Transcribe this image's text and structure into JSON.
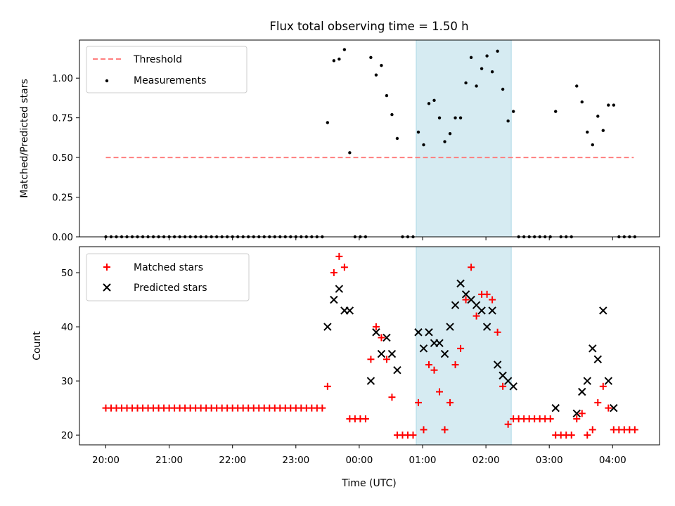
{
  "chart_data": [
    {
      "type": "scatter",
      "title": "Flux total observing time = 1.50 h",
      "xlabel": "",
      "ylabel": "Matched/Predicted stars",
      "ylim": [
        0,
        1.24
      ],
      "yticks": [
        "0.00",
        "0.25",
        "0.50",
        "0.75",
        "1.00"
      ],
      "shaded_interval": [
        "00:54",
        "02:24"
      ],
      "legend": {
        "placement": "top-left",
        "entries": [
          "Threshold",
          "Measurements"
        ]
      },
      "threshold": {
        "name": "Threshold",
        "value": 0.5,
        "x_start": "20:00",
        "x_end": "04:20",
        "color": "#ff7f7f"
      },
      "series": [
        {
          "name": "Measurements",
          "color": "#000000",
          "points": [
            [
              "20:00",
              0
            ],
            [
              "20:05",
              0
            ],
            [
              "20:10",
              0
            ],
            [
              "20:15",
              0
            ],
            [
              "20:20",
              0
            ],
            [
              "20:25",
              0
            ],
            [
              "20:30",
              0
            ],
            [
              "20:35",
              0
            ],
            [
              "20:40",
              0
            ],
            [
              "20:45",
              0
            ],
            [
              "20:50",
              0
            ],
            [
              "20:55",
              0
            ],
            [
              "21:00",
              0
            ],
            [
              "21:05",
              0
            ],
            [
              "21:10",
              0
            ],
            [
              "21:15",
              0
            ],
            [
              "21:20",
              0
            ],
            [
              "21:25",
              0
            ],
            [
              "21:30",
              0
            ],
            [
              "21:35",
              0
            ],
            [
              "21:40",
              0
            ],
            [
              "21:45",
              0
            ],
            [
              "21:50",
              0
            ],
            [
              "21:55",
              0
            ],
            [
              "22:00",
              0
            ],
            [
              "22:05",
              0
            ],
            [
              "22:10",
              0
            ],
            [
              "22:15",
              0
            ],
            [
              "22:20",
              0
            ],
            [
              "22:25",
              0
            ],
            [
              "22:30",
              0
            ],
            [
              "22:35",
              0
            ],
            [
              "22:40",
              0
            ],
            [
              "22:45",
              0
            ],
            [
              "22:50",
              0
            ],
            [
              "22:55",
              0
            ],
            [
              "23:00",
              0
            ],
            [
              "23:05",
              0
            ],
            [
              "23:10",
              0
            ],
            [
              "23:15",
              0
            ],
            [
              "23:20",
              0
            ],
            [
              "23:25",
              0
            ],
            [
              "23:30",
              0.72
            ],
            [
              "23:36",
              1.11
            ],
            [
              "23:41",
              1.12
            ],
            [
              "23:46",
              1.18
            ],
            [
              "23:51",
              0.53
            ],
            [
              "23:56",
              0
            ],
            [
              "00:01",
              0
            ],
            [
              "00:06",
              0
            ],
            [
              "00:11",
              1.13
            ],
            [
              "00:16",
              1.02
            ],
            [
              "00:21",
              1.08
            ],
            [
              "00:26",
              0.89
            ],
            [
              "00:31",
              0.77
            ],
            [
              "00:36",
              0.62
            ],
            [
              "00:41",
              0
            ],
            [
              "00:46",
              0
            ],
            [
              "00:51",
              0
            ],
            [
              "00:56",
              0.66
            ],
            [
              "01:01",
              0.58
            ],
            [
              "01:06",
              0.84
            ],
            [
              "01:11",
              0.86
            ],
            [
              "01:16",
              0.75
            ],
            [
              "01:21",
              0.6
            ],
            [
              "01:26",
              0.65
            ],
            [
              "01:31",
              0.75
            ],
            [
              "01:36",
              0.75
            ],
            [
              "01:41",
              0.97
            ],
            [
              "01:46",
              1.13
            ],
            [
              "01:51",
              0.95
            ],
            [
              "01:56",
              1.06
            ],
            [
              "02:01",
              1.14
            ],
            [
              "02:06",
              1.04
            ],
            [
              "02:11",
              1.17
            ],
            [
              "02:16",
              0.93
            ],
            [
              "02:21",
              0.73
            ],
            [
              "02:26",
              0.79
            ],
            [
              "02:31",
              0
            ],
            [
              "02:36",
              0
            ],
            [
              "02:41",
              0
            ],
            [
              "02:46",
              0
            ],
            [
              "02:51",
              0
            ],
            [
              "02:56",
              0
            ],
            [
              "03:01",
              0
            ],
            [
              "03:06",
              0.79
            ],
            [
              "03:11",
              0
            ],
            [
              "03:16",
              0
            ],
            [
              "03:21",
              0
            ],
            [
              "03:26",
              0.95
            ],
            [
              "03:31",
              0.85
            ],
            [
              "03:36",
              0.66
            ],
            [
              "03:41",
              0.58
            ],
            [
              "03:46",
              0.76
            ],
            [
              "03:51",
              0.67
            ],
            [
              "03:56",
              0.83
            ],
            [
              "04:01",
              0.83
            ],
            [
              "04:06",
              0
            ],
            [
              "04:11",
              0
            ],
            [
              "04:16",
              0
            ],
            [
              "04:21",
              0
            ]
          ]
        }
      ]
    },
    {
      "type": "scatter",
      "title": "",
      "xlabel": "Time (UTC)",
      "ylabel": "Count",
      "ylim": [
        18.2,
        54.8
      ],
      "yticks": [
        "20",
        "30",
        "40",
        "50"
      ],
      "xticks": [
        "20:00",
        "21:00",
        "22:00",
        "23:00",
        "00:00",
        "01:00",
        "02:00",
        "03:00",
        "04:00"
      ],
      "shaded_interval": [
        "00:54",
        "02:24"
      ],
      "legend": {
        "placement": "top-left",
        "entries": [
          "Matched stars",
          "Predicted stars"
        ]
      },
      "series": [
        {
          "name": "Matched stars",
          "marker": "plus",
          "color": "#ff0000",
          "points": [
            [
              "20:00",
              25
            ],
            [
              "20:05",
              25
            ],
            [
              "20:10",
              25
            ],
            [
              "20:15",
              25
            ],
            [
              "20:20",
              25
            ],
            [
              "20:25",
              25
            ],
            [
              "20:30",
              25
            ],
            [
              "20:35",
              25
            ],
            [
              "20:40",
              25
            ],
            [
              "20:45",
              25
            ],
            [
              "20:50",
              25
            ],
            [
              "20:55",
              25
            ],
            [
              "21:00",
              25
            ],
            [
              "21:05",
              25
            ],
            [
              "21:10",
              25
            ],
            [
              "21:15",
              25
            ],
            [
              "21:20",
              25
            ],
            [
              "21:25",
              25
            ],
            [
              "21:30",
              25
            ],
            [
              "21:35",
              25
            ],
            [
              "21:40",
              25
            ],
            [
              "21:45",
              25
            ],
            [
              "21:50",
              25
            ],
            [
              "21:55",
              25
            ],
            [
              "22:00",
              25
            ],
            [
              "22:05",
              25
            ],
            [
              "22:10",
              25
            ],
            [
              "22:15",
              25
            ],
            [
              "22:20",
              25
            ],
            [
              "22:25",
              25
            ],
            [
              "22:30",
              25
            ],
            [
              "22:35",
              25
            ],
            [
              "22:40",
              25
            ],
            [
              "22:45",
              25
            ],
            [
              "22:50",
              25
            ],
            [
              "22:55",
              25
            ],
            [
              "23:00",
              25
            ],
            [
              "23:05",
              25
            ],
            [
              "23:10",
              25
            ],
            [
              "23:15",
              25
            ],
            [
              "23:20",
              25
            ],
            [
              "23:25",
              25
            ],
            [
              "23:30",
              29
            ],
            [
              "23:36",
              50
            ],
            [
              "23:41",
              53
            ],
            [
              "23:46",
              51
            ],
            [
              "23:51",
              23
            ],
            [
              "23:56",
              23
            ],
            [
              "00:01",
              23
            ],
            [
              "00:06",
              23
            ],
            [
              "00:11",
              34
            ],
            [
              "00:16",
              40
            ],
            [
              "00:21",
              38
            ],
            [
              "00:26",
              34
            ],
            [
              "00:31",
              27
            ],
            [
              "00:36",
              20
            ],
            [
              "00:41",
              20
            ],
            [
              "00:46",
              20
            ],
            [
              "00:51",
              20
            ],
            [
              "00:56",
              26
            ],
            [
              "01:01",
              21
            ],
            [
              "01:06",
              33
            ],
            [
              "01:11",
              32
            ],
            [
              "01:16",
              28
            ],
            [
              "01:21",
              21
            ],
            [
              "01:26",
              26
            ],
            [
              "01:31",
              33
            ],
            [
              "01:36",
              36
            ],
            [
              "01:41",
              45
            ],
            [
              "01:46",
              51
            ],
            [
              "01:51",
              42
            ],
            [
              "01:56",
              46
            ],
            [
              "02:01",
              46
            ],
            [
              "02:06",
              45
            ],
            [
              "02:11",
              39
            ],
            [
              "02:16",
              29
            ],
            [
              "02:21",
              22
            ],
            [
              "02:26",
              23
            ],
            [
              "02:31",
              23
            ],
            [
              "02:36",
              23
            ],
            [
              "02:41",
              23
            ],
            [
              "02:46",
              23
            ],
            [
              "02:51",
              23
            ],
            [
              "02:56",
              23
            ],
            [
              "03:01",
              23
            ],
            [
              "03:06",
              20
            ],
            [
              "03:11",
              20
            ],
            [
              "03:16",
              20
            ],
            [
              "03:21",
              20
            ],
            [
              "03:26",
              23
            ],
            [
              "03:31",
              24
            ],
            [
              "03:36",
              20
            ],
            [
              "03:41",
              21
            ],
            [
              "03:46",
              26
            ],
            [
              "03:51",
              29
            ],
            [
              "03:56",
              25
            ],
            [
              "04:01",
              21
            ],
            [
              "04:06",
              21
            ],
            [
              "04:11",
              21
            ],
            [
              "04:16",
              21
            ],
            [
              "04:21",
              21
            ]
          ]
        },
        {
          "name": "Predicted stars",
          "marker": "x",
          "color": "#000000",
          "points": [
            [
              "23:30",
              40
            ],
            [
              "23:36",
              45
            ],
            [
              "23:41",
              47
            ],
            [
              "23:46",
              43
            ],
            [
              "23:51",
              43
            ],
            [
              "00:11",
              30
            ],
            [
              "00:16",
              39
            ],
            [
              "00:21",
              35
            ],
            [
              "00:26",
              38
            ],
            [
              "00:31",
              35
            ],
            [
              "00:36",
              32
            ],
            [
              "00:56",
              39
            ],
            [
              "01:01",
              36
            ],
            [
              "01:06",
              39
            ],
            [
              "01:11",
              37
            ],
            [
              "01:16",
              37
            ],
            [
              "01:21",
              35
            ],
            [
              "01:26",
              40
            ],
            [
              "01:31",
              44
            ],
            [
              "01:36",
              48
            ],
            [
              "01:41",
              46
            ],
            [
              "01:46",
              45
            ],
            [
              "01:51",
              44
            ],
            [
              "01:56",
              43
            ],
            [
              "02:01",
              40
            ],
            [
              "02:06",
              43
            ],
            [
              "02:11",
              33
            ],
            [
              "02:16",
              31
            ],
            [
              "02:21",
              30
            ],
            [
              "02:26",
              29
            ],
            [
              "03:06",
              25
            ],
            [
              "03:26",
              24
            ],
            [
              "03:31",
              28
            ],
            [
              "03:36",
              30
            ],
            [
              "03:41",
              36
            ],
            [
              "03:46",
              34
            ],
            [
              "03:51",
              43
            ],
            [
              "03:56",
              30
            ],
            [
              "04:01",
              25
            ]
          ]
        }
      ]
    }
  ]
}
